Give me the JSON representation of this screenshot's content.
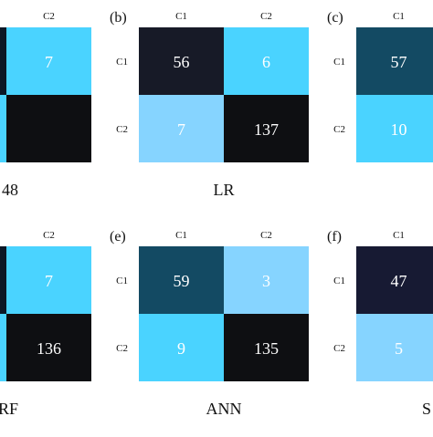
{
  "chart_data": [
    {
      "type": "heatmap",
      "panel_label": "",
      "title": "48",
      "col_labels": [
        "",
        "C2"
      ],
      "row_labels": [
        "",
        ""
      ],
      "cells": [
        [
          null,
          7
        ],
        [
          null,
          null
        ]
      ],
      "colors": [
        [
          "#0c1726",
          "#4ad3ff"
        ],
        [
          "#4ad3ff",
          "#0e0f12"
        ]
      ]
    },
    {
      "type": "heatmap",
      "panel_label": "(b)",
      "title": "LR",
      "col_labels": [
        "C1",
        "C2"
      ],
      "row_labels": [
        "C1",
        "C2"
      ],
      "cells": [
        [
          56,
          6
        ],
        [
          7,
          137
        ]
      ],
      "colors": [
        [
          "#171a27",
          "#4ad3ff"
        ],
        [
          "#86d4ff",
          "#0e0f12"
        ]
      ]
    },
    {
      "type": "heatmap",
      "panel_label": "(c)",
      "title": "",
      "col_labels": [
        "C1",
        ""
      ],
      "row_labels": [
        "C1",
        "C2"
      ],
      "cells": [
        [
          57,
          null
        ],
        [
          10,
          null
        ]
      ],
      "colors": [
        [
          "#134a63",
          "#ffffff"
        ],
        [
          "#4ad3ff",
          "#ffffff"
        ]
      ]
    },
    {
      "type": "heatmap",
      "panel_label": "",
      "title": "RF",
      "col_labels": [
        "",
        "C2"
      ],
      "row_labels": [
        "",
        ""
      ],
      "cells": [
        [
          null,
          7
        ],
        [
          null,
          136
        ]
      ],
      "colors": [
        [
          "#0c1726",
          "#4ad3ff"
        ],
        [
          "#4ad3ff",
          "#0e0f12"
        ]
      ]
    },
    {
      "type": "heatmap",
      "panel_label": "(e)",
      "title": "ANN",
      "col_labels": [
        "C1",
        "C2"
      ],
      "row_labels": [
        "C1",
        "C2"
      ],
      "cells": [
        [
          59,
          3
        ],
        [
          9,
          135
        ]
      ],
      "colors": [
        [
          "#134a63",
          "#86d4ff"
        ],
        [
          "#4ad3ff",
          "#0e0f12"
        ]
      ]
    },
    {
      "type": "heatmap",
      "panel_label": "(f)",
      "title": "S",
      "col_labels": [
        "C1",
        ""
      ],
      "row_labels": [
        "C1",
        "C2"
      ],
      "cells": [
        [
          47,
          null
        ],
        [
          5,
          null
        ]
      ],
      "colors": [
        [
          "#171a33",
          "#ffffff"
        ],
        [
          "#86d4ff",
          "#ffffff"
        ]
      ]
    }
  ]
}
